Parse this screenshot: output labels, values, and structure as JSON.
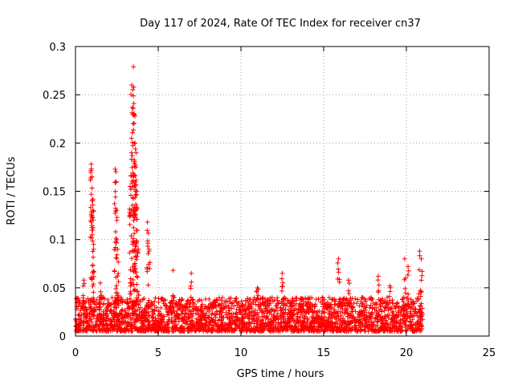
{
  "chart_data": {
    "type": "scatter",
    "title": "Day 117 of 2024, Rate Of TEC Index for receiver cn37",
    "xlabel": "GPS time / hours",
    "ylabel": "ROTI / TECUs",
    "xlim": [
      0,
      25
    ],
    "ylim": [
      0,
      0.3
    ],
    "xticks": [
      0,
      5,
      10,
      15,
      20,
      25
    ],
    "yticks": [
      0,
      0.05,
      0.1,
      0.15,
      0.2,
      0.25,
      0.3
    ],
    "xtick_labels": [
      "0",
      "5",
      "10",
      "15",
      "20",
      "25"
    ],
    "ytick_labels": [
      "0",
      "0.05",
      "0.1",
      "0.15",
      "0.2",
      "0.25",
      "0.3"
    ],
    "grid": true,
    "marker": "+",
    "marker_color": "#ff0000",
    "data_range_x": [
      0,
      21
    ],
    "baseline_band": [
      0.005,
      0.04
    ],
    "spikes": [
      {
        "x": 0.5,
        "y": 0.058
      },
      {
        "x": 0.95,
        "y": 0.178
      },
      {
        "x": 1.0,
        "y": 0.165
      },
      {
        "x": 1.05,
        "y": 0.13
      },
      {
        "x": 1.1,
        "y": 0.09
      },
      {
        "x": 1.5,
        "y": 0.055
      },
      {
        "x": 2.4,
        "y": 0.173
      },
      {
        "x": 2.45,
        "y": 0.16
      },
      {
        "x": 2.5,
        "y": 0.12
      },
      {
        "x": 2.55,
        "y": 0.09
      },
      {
        "x": 3.3,
        "y": 0.155
      },
      {
        "x": 3.4,
        "y": 0.26
      },
      {
        "x": 3.5,
        "y": 0.279
      },
      {
        "x": 3.55,
        "y": 0.23
      },
      {
        "x": 3.6,
        "y": 0.2
      },
      {
        "x": 3.65,
        "y": 0.175
      },
      {
        "x": 3.7,
        "y": 0.15
      },
      {
        "x": 3.8,
        "y": 0.09
      },
      {
        "x": 4.35,
        "y": 0.118
      },
      {
        "x": 4.45,
        "y": 0.09
      },
      {
        "x": 5.9,
        "y": 0.068
      },
      {
        "x": 7.0,
        "y": 0.065
      },
      {
        "x": 11.0,
        "y": 0.05
      },
      {
        "x": 12.5,
        "y": 0.065
      },
      {
        "x": 15.9,
        "y": 0.08
      },
      {
        "x": 16.5,
        "y": 0.058
      },
      {
        "x": 18.3,
        "y": 0.062
      },
      {
        "x": 19.0,
        "y": 0.052
      },
      {
        "x": 19.9,
        "y": 0.08
      },
      {
        "x": 20.1,
        "y": 0.072
      },
      {
        "x": 20.8,
        "y": 0.088
      },
      {
        "x": 20.9,
        "y": 0.08
      }
    ]
  }
}
